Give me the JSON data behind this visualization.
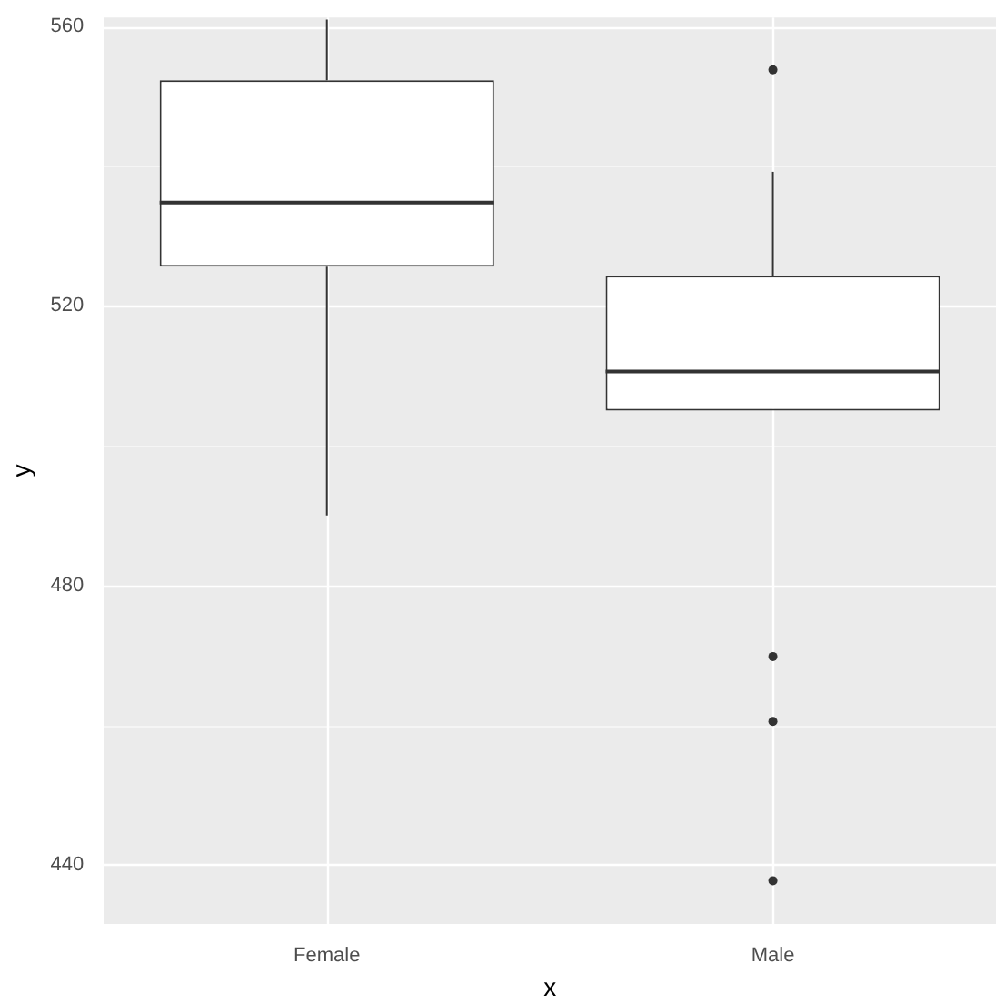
{
  "chart_data": {
    "type": "box",
    "xlabel": "x",
    "ylabel": "y",
    "categories": [
      "Female",
      "Male"
    ],
    "boxes": [
      {
        "low": 490,
        "q1": 525.6,
        "median": 534.8,
        "q3": 552.3,
        "high": 561
      },
      {
        "low": 505,
        "q1": 505,
        "median": 510.6,
        "q3": 524.3,
        "high": 539.2,
        "outliers": [
          553.8,
          469.8,
          460.5,
          437.7
        ]
      }
    ],
    "ylim": [
      431.5,
      561.3
    ],
    "yticks": [
      440,
      {
        "value": 460,
        "label": null
      },
      480,
      {
        "value": 500,
        "label": null
      },
      520,
      {
        "value": 540,
        "label": null
      },
      560
    ],
    "grid": true,
    "legend": false
  }
}
